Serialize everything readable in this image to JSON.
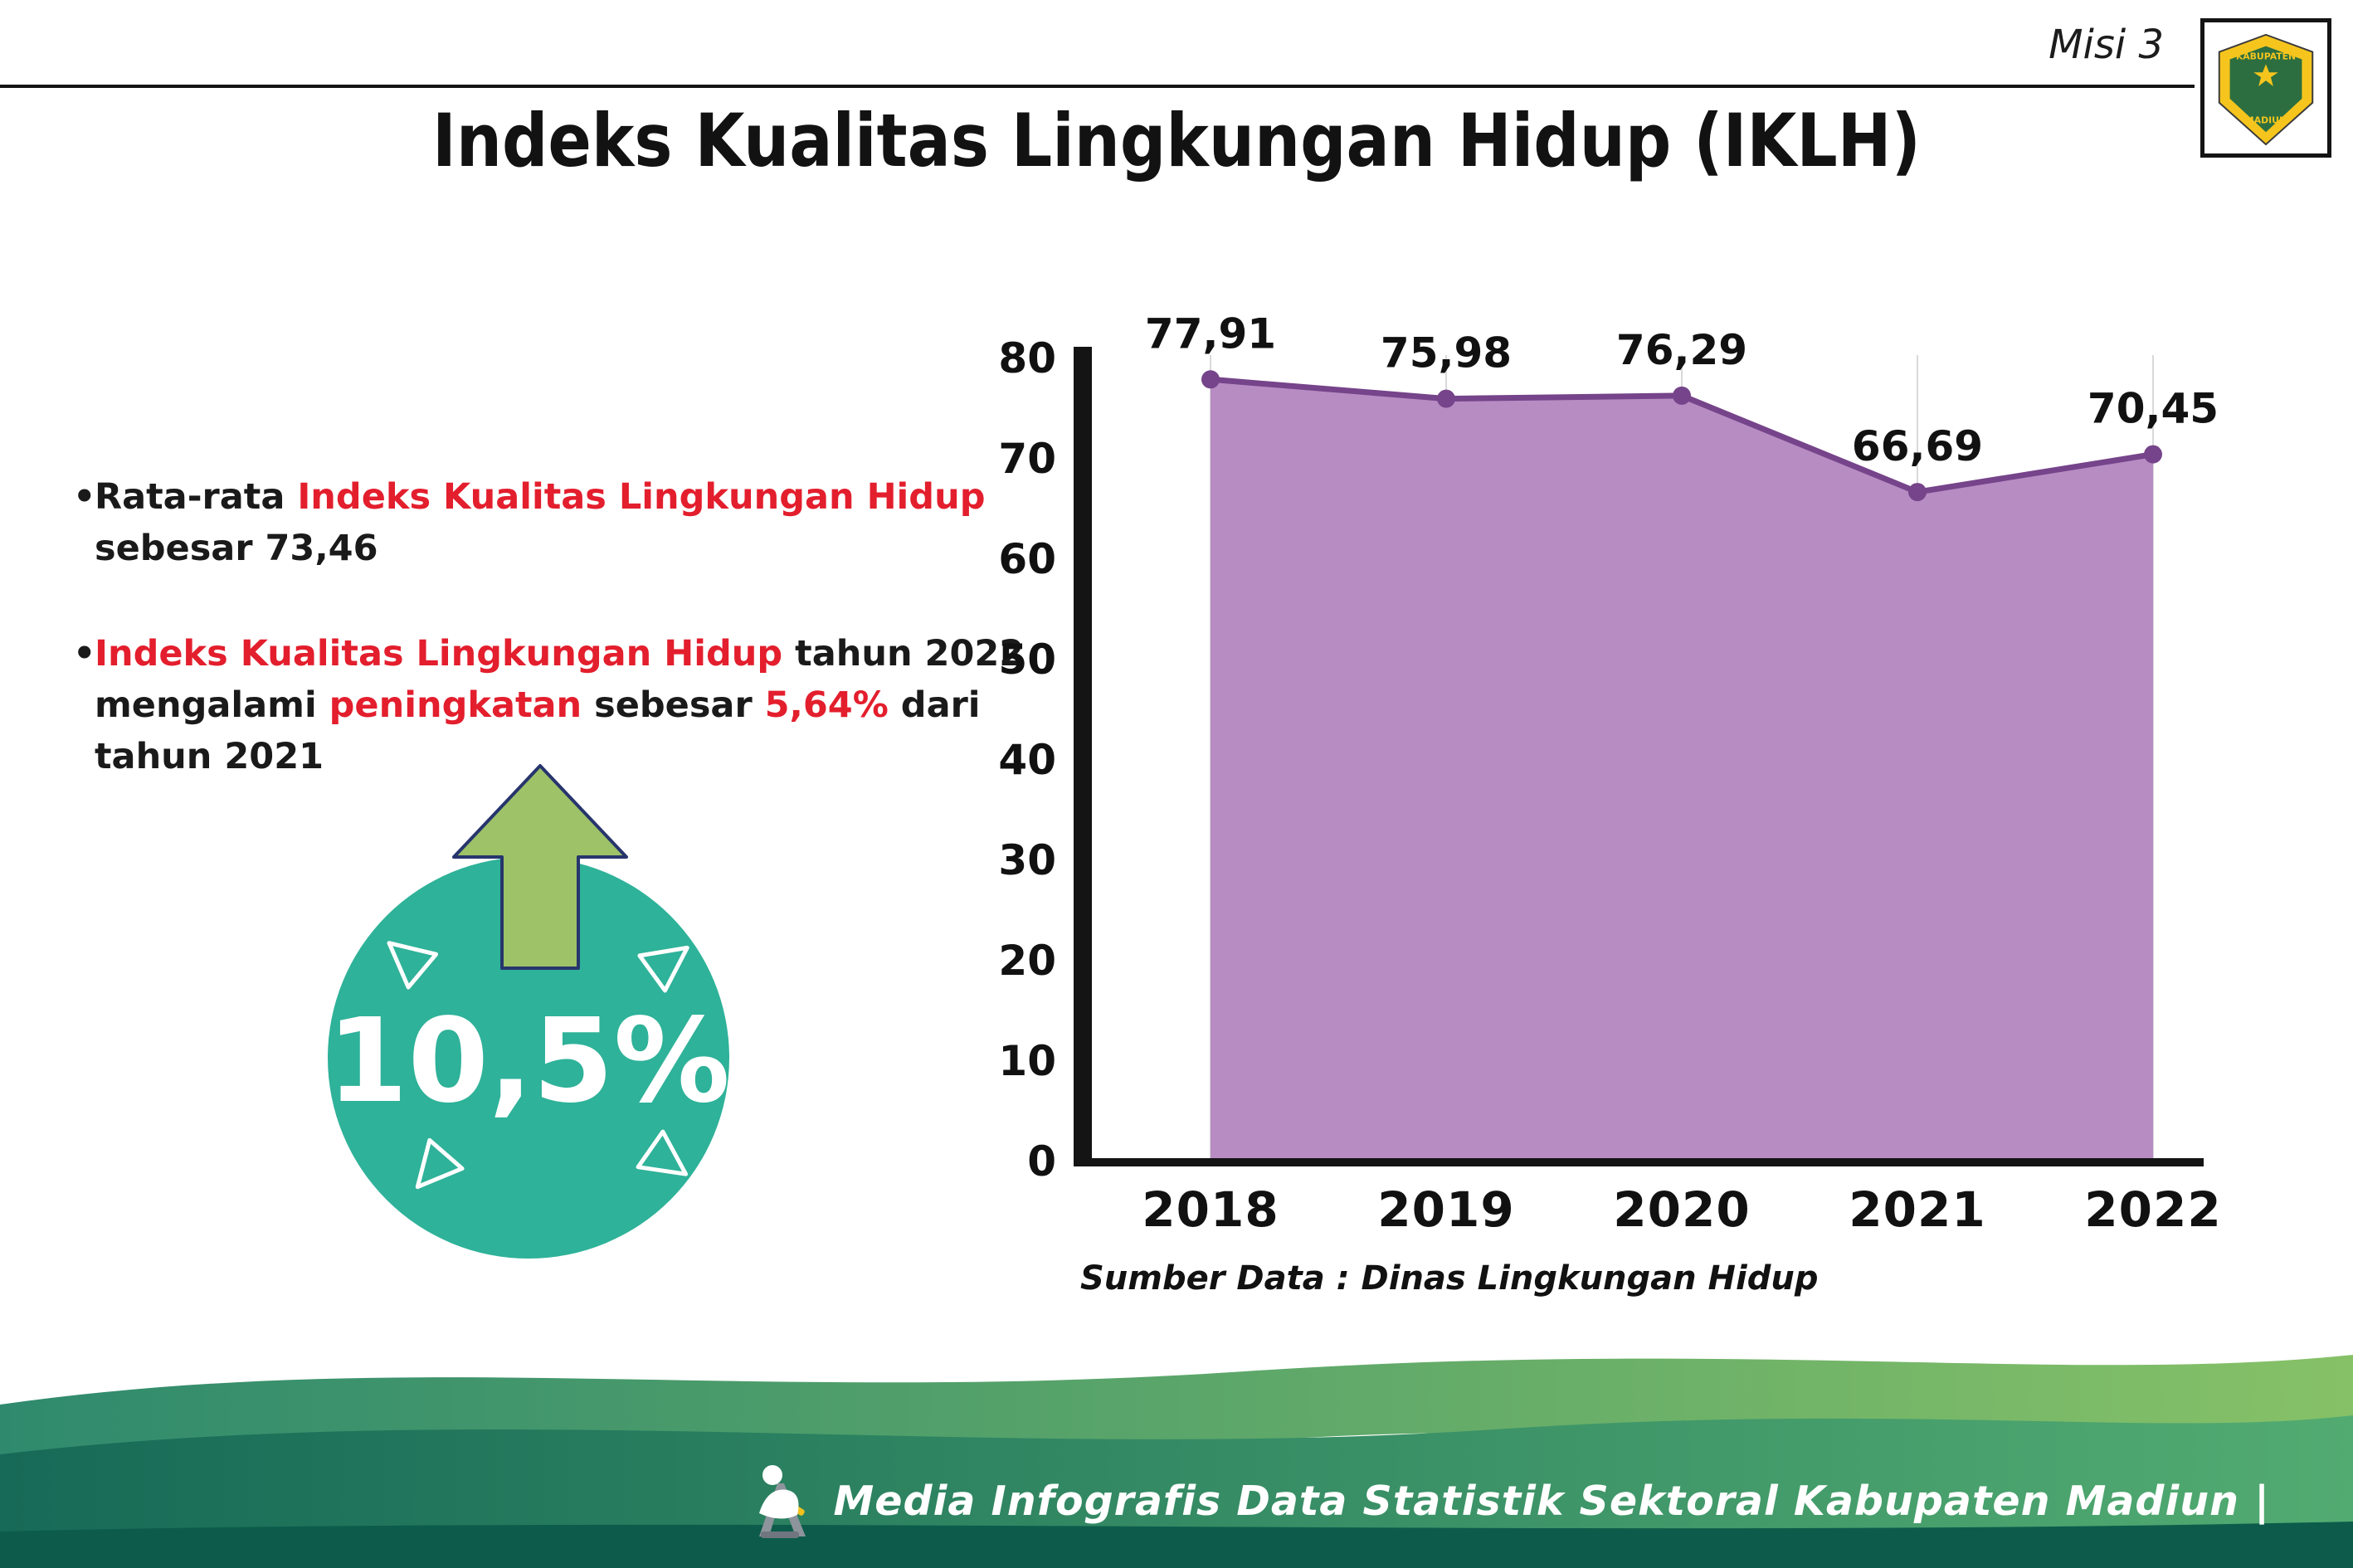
{
  "header": {
    "misi_label": "Misi 3",
    "title": "Indeks Kualitas Lingkungan Hidup (IKLH)",
    "logo": {
      "top_text": "KABUPATEN",
      "bottom_text": "MADIUN"
    }
  },
  "bullets": {
    "marker": "•",
    "b1": {
      "t1": "Rata-rata ",
      "r1": "Indeks Kualitas Lingkungan Hidup",
      "t2": " sebesar 73,46"
    },
    "b2": {
      "r1": "Indeks Kualitas Lingkungan Hidup",
      "t1": " tahun 2022 mengalami ",
      "r2": "peningkatan",
      "t2": " sebesar ",
      "r3": "5,64%",
      "t3": " dari tahun 2021"
    }
  },
  "badge": {
    "value": "10,5%",
    "circle_color": "#2eb299",
    "arrow_color": "#9dc268"
  },
  "chart_data": {
    "type": "area",
    "categories": [
      "2018",
      "2019",
      "2020",
      "2021",
      "2022"
    ],
    "values": [
      77.91,
      75.98,
      76.29,
      66.69,
      70.45
    ],
    "point_labels": [
      "77,91",
      "75,98",
      "76,29",
      "66,69",
      "70,45"
    ],
    "ylim": [
      0,
      80
    ],
    "yticks": [
      0,
      10,
      20,
      30,
      40,
      50,
      60,
      70,
      80
    ],
    "grid": "vertical",
    "legend": "none",
    "colors": {
      "area": "#b78cc3",
      "line": "#76448a",
      "point": "#76448a",
      "axis": "#141414",
      "grid": "#d9d9d9"
    },
    "source_note": "Sumber Data : Dinas Lingkungan Hidup"
  },
  "footer": {
    "credit": "Media Infografis Data Statistik Sektoral Kabupaten Madiun |"
  }
}
